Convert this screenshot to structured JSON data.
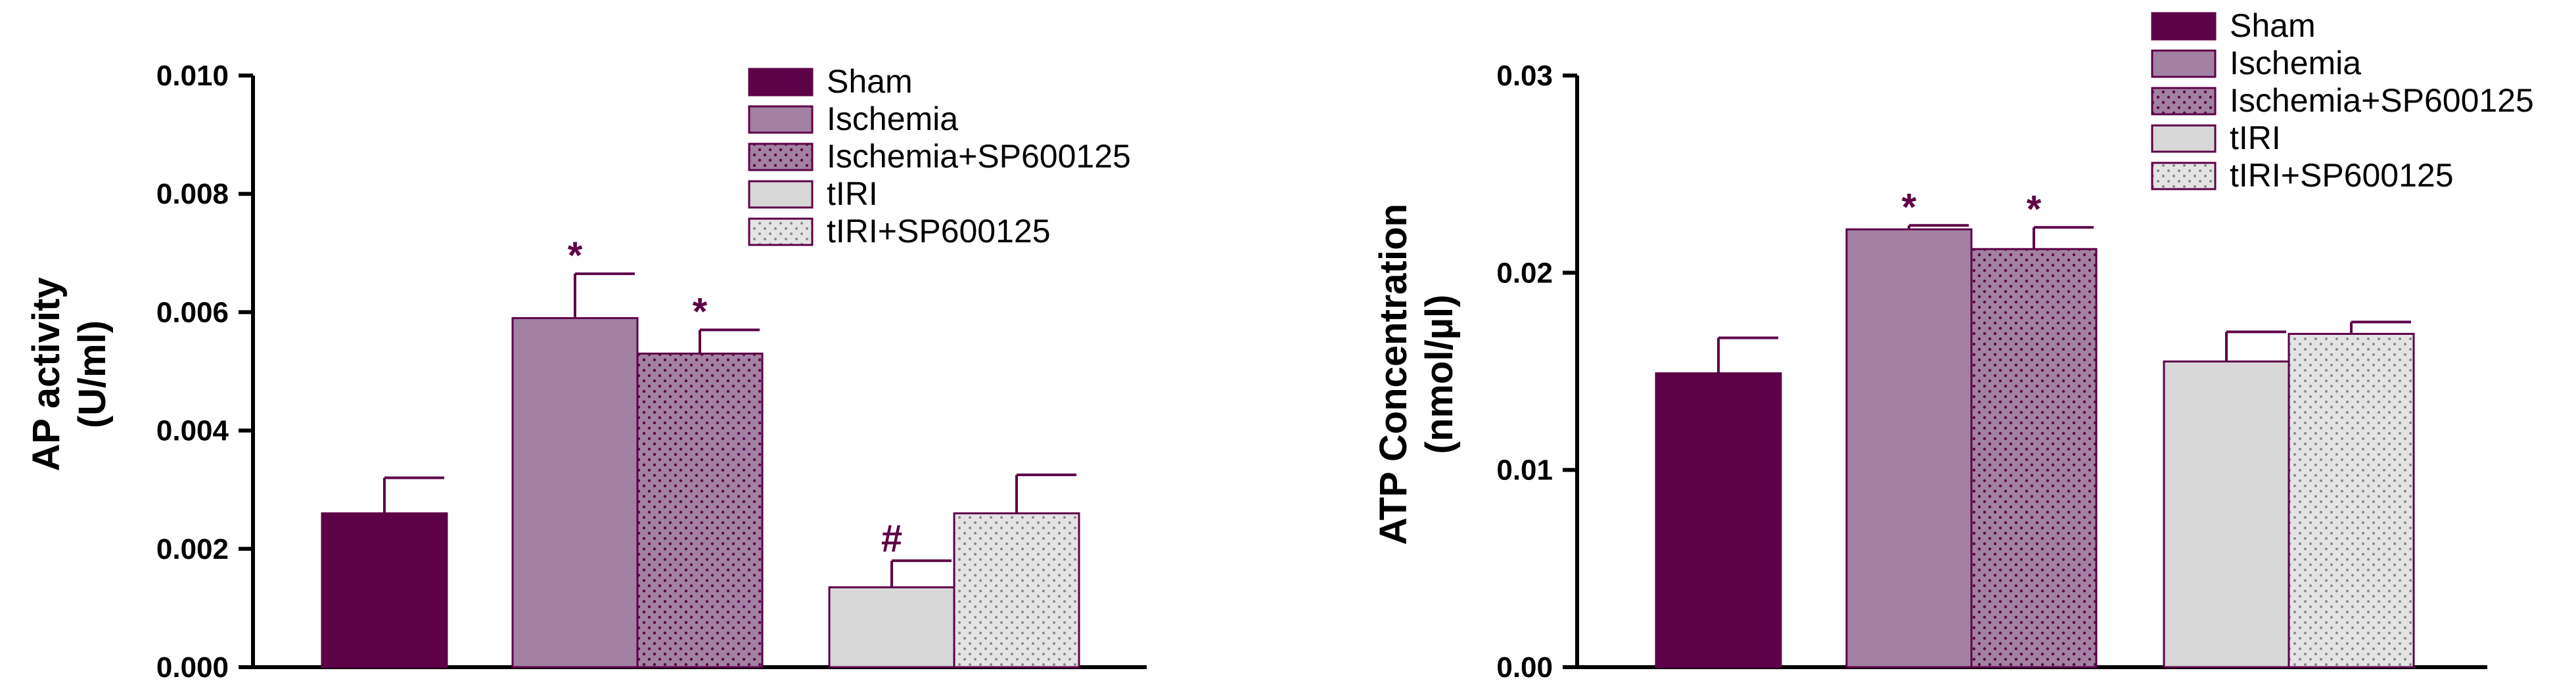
{
  "colors": {
    "sham": "#5e0248",
    "ischemia": "#a281a3",
    "ischemia_sp": "#a281a3",
    "tiri": "#d7d7d7",
    "tiri_sp": "#e4e4e4",
    "outline": "#5e0248",
    "annotation": "#5e0248"
  },
  "chart_data": [
    {
      "type": "bar",
      "title": "",
      "xlabel": "",
      "ylabel": [
        "AP activity",
        "(U/ml)"
      ],
      "ylim": [
        0,
        0.01
      ],
      "yticks": [
        "0.000",
        "0.002",
        "0.004",
        "0.006",
        "0.008",
        "0.010"
      ],
      "grid": false,
      "legend_position": "top-right",
      "series": [
        {
          "name": "Sham",
          "pattern": "solid",
          "value": 0.0026,
          "error": 0.0006,
          "annotation": ""
        },
        {
          "name": "Ischemia",
          "pattern": "solid",
          "value": 0.0059,
          "error": 0.00075,
          "annotation": "*"
        },
        {
          "name": "Ischemia+SP600125",
          "pattern": "dots",
          "value": 0.0053,
          "error": 0.0004,
          "annotation": "*"
        },
        {
          "name": "tIRI",
          "pattern": "solid",
          "value": 0.00135,
          "error": 0.00045,
          "annotation": "#"
        },
        {
          "name": "tIRI+SP600125",
          "pattern": "dots",
          "value": 0.0026,
          "error": 0.00065,
          "annotation": ""
        }
      ]
    },
    {
      "type": "bar",
      "title": "",
      "xlabel": "",
      "ylabel": [
        "ATP Concentration",
        "(nmol/µl)"
      ],
      "ylim": [
        0,
        0.03
      ],
      "yticks": [
        "0.00",
        "0.01",
        "0.02",
        "0.03"
      ],
      "grid": false,
      "legend_position": "top-right",
      "series": [
        {
          "name": "Sham",
          "pattern": "solid",
          "value": 0.0149,
          "error": 0.0018,
          "annotation": ""
        },
        {
          "name": "Ischemia",
          "pattern": "solid",
          "value": 0.0222,
          "error": 0.0002,
          "annotation": "*"
        },
        {
          "name": "Ischemia+SP600125",
          "pattern": "dots",
          "value": 0.0212,
          "error": 0.0011,
          "annotation": "*"
        },
        {
          "name": "tIRI",
          "pattern": "solid",
          "value": 0.0155,
          "error": 0.0015,
          "annotation": ""
        },
        {
          "name": "tIRI+SP600125",
          "pattern": "dots",
          "value": 0.0169,
          "error": 0.0006,
          "annotation": ""
        }
      ]
    }
  ]
}
